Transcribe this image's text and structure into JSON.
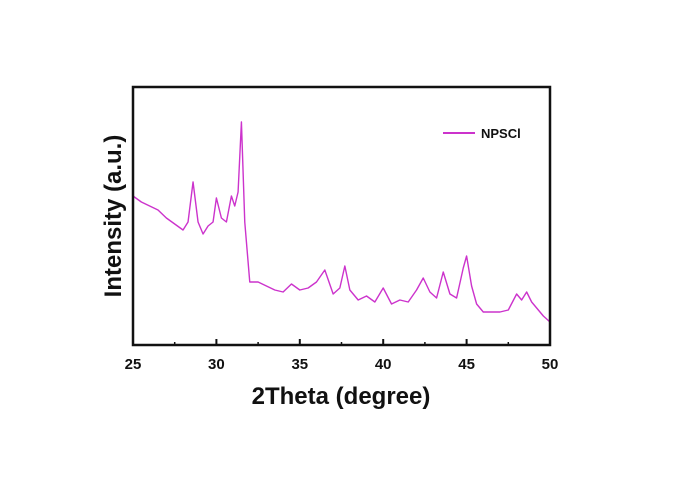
{
  "chart_data": {
    "type": "line",
    "xlabel": "2Theta (degree)",
    "ylabel": "Intensity (a.u.)",
    "xlim": [
      25,
      50
    ],
    "x_ticks": [
      "25",
      "30",
      "35",
      "40",
      "45",
      "50"
    ],
    "y_ticks_labeled": false,
    "grid": false,
    "legend_position": "top-right",
    "series": [
      {
        "name": "NPSCl",
        "color": "#cc33cc",
        "x": [
          25.0,
          25.5,
          26.0,
          26.5,
          27.0,
          27.5,
          28.0,
          28.3,
          28.6,
          28.9,
          29.2,
          29.5,
          29.8,
          30.0,
          30.3,
          30.6,
          30.9,
          31.1,
          31.3,
          31.5,
          31.7,
          32.0,
          32.5,
          33.0,
          33.5,
          34.0,
          34.5,
          35.0,
          35.5,
          36.0,
          36.5,
          37.0,
          37.4,
          37.7,
          38.0,
          38.5,
          39.0,
          39.5,
          40.0,
          40.5,
          41.0,
          41.5,
          42.0,
          42.4,
          42.8,
          43.2,
          43.6,
          44.0,
          44.4,
          44.8,
          45.0,
          45.3,
          45.6,
          46.0,
          46.5,
          47.0,
          47.5,
          48.0,
          48.3,
          48.6,
          48.9,
          49.2,
          49.6,
          50.0
        ],
        "y": [
          0.63,
          0.6,
          0.58,
          0.56,
          0.52,
          0.49,
          0.46,
          0.5,
          0.7,
          0.5,
          0.44,
          0.48,
          0.5,
          0.62,
          0.52,
          0.5,
          0.63,
          0.58,
          0.65,
          1.0,
          0.5,
          0.2,
          0.2,
          0.18,
          0.16,
          0.15,
          0.19,
          0.16,
          0.17,
          0.2,
          0.26,
          0.14,
          0.17,
          0.28,
          0.16,
          0.11,
          0.13,
          0.1,
          0.17,
          0.09,
          0.11,
          0.1,
          0.16,
          0.22,
          0.15,
          0.12,
          0.25,
          0.14,
          0.12,
          0.27,
          0.33,
          0.18,
          0.09,
          0.05,
          0.05,
          0.05,
          0.06,
          0.14,
          0.11,
          0.15,
          0.1,
          0.07,
          0.03,
          0.0
        ]
      }
    ]
  }
}
